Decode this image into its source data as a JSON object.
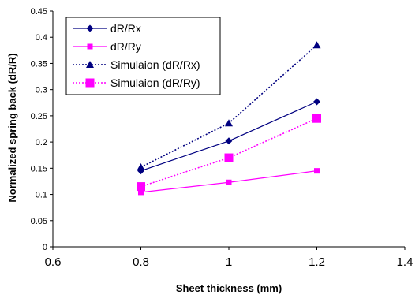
{
  "chart_data": {
    "type": "line",
    "xlabel": "Sheet thickness (mm)",
    "ylabel": "Normalized spring back (dR/R)",
    "xlim": [
      0.6,
      1.4
    ],
    "ylim": [
      0,
      0.45
    ],
    "x_ticks": [
      "0.6",
      "0.8",
      "1",
      "1.2",
      "1.4"
    ],
    "y_ticks": [
      "0",
      "0.05",
      "0.1",
      "0.15",
      "0.2",
      "0.25",
      "0.3",
      "0.35",
      "0.4",
      "0.45"
    ],
    "grid": false,
    "legend_position": "top-left",
    "x": [
      0.8,
      1.0,
      1.2
    ],
    "series": [
      {
        "name": "dR/Rx",
        "values": [
          0.145,
          0.202,
          0.277
        ],
        "color": "#000080",
        "line": "solid",
        "marker": "diamond"
      },
      {
        "name": "dR/Ry",
        "values": [
          0.104,
          0.123,
          0.145
        ],
        "color": "#ff00ff",
        "line": "solid",
        "marker": "square"
      },
      {
        "name": "Simulaion (dR/Rx)",
        "values": [
          0.152,
          0.236,
          0.385
        ],
        "color": "#000080",
        "line": "dotted",
        "marker": "triangle"
      },
      {
        "name": "Simulaion (dR/Ry)",
        "values": [
          0.115,
          0.17,
          0.245
        ],
        "color": "#ff00ff",
        "line": "dotted",
        "marker": "big-square"
      }
    ]
  }
}
